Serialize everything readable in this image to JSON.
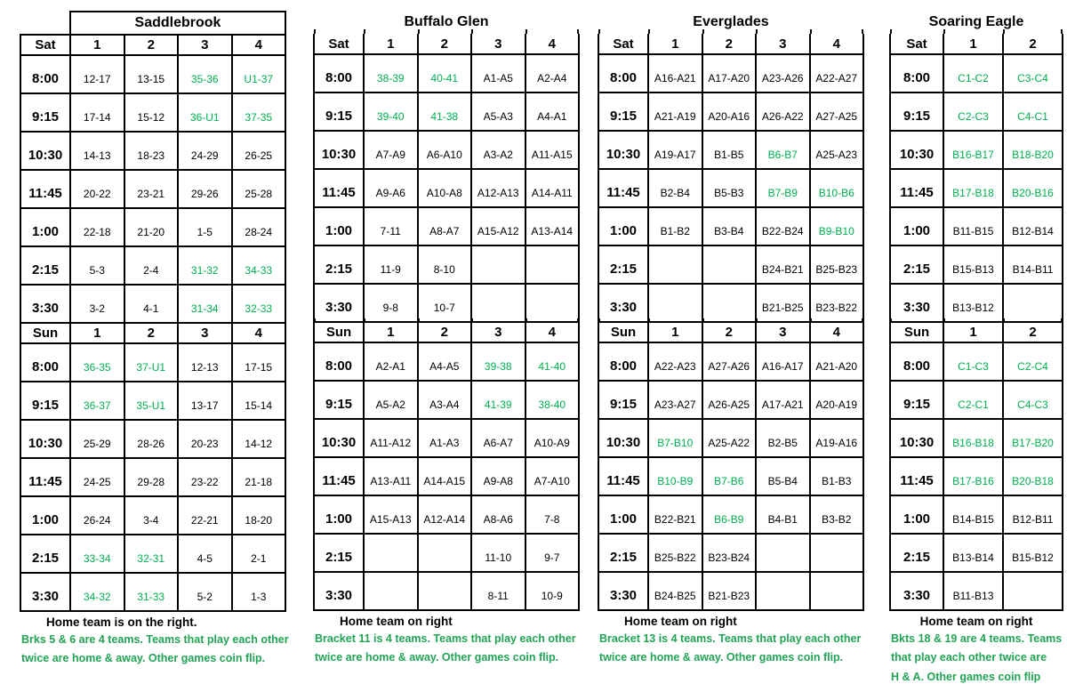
{
  "colors": {
    "cell_green": "#00B050",
    "note_green": "#21A454",
    "border": "#000000",
    "background": "#FFFFFF",
    "text": "#000000"
  },
  "tables": [
    {
      "id": "saddlebrook",
      "title": "Saddlebrook",
      "boxed_title": true,
      "days": [
        "Sat",
        "Sun"
      ],
      "columns": [
        "1",
        "2",
        "3",
        "4"
      ],
      "times": [
        "8:00",
        "9:15",
        "10:30",
        "11:45",
        "1:00",
        "2:15",
        "3:30"
      ],
      "sat": [
        [
          "12-17",
          "13-15",
          {
            "v": "35-36",
            "g": true
          },
          {
            "v": "U1-37",
            "g": true
          }
        ],
        [
          "17-14",
          "15-12",
          {
            "v": "36-U1",
            "g": true
          },
          {
            "v": "37-35",
            "g": true
          }
        ],
        [
          "14-13",
          "18-23",
          "24-29",
          "26-25"
        ],
        [
          "20-22",
          "23-21",
          "29-26",
          "25-28"
        ],
        [
          "22-18",
          "21-20",
          "1-5",
          "28-24"
        ],
        [
          "5-3",
          "2-4",
          {
            "v": "31-32",
            "g": true
          },
          {
            "v": "34-33",
            "g": true
          }
        ],
        [
          "3-2",
          "4-1",
          {
            "v": "31-34",
            "g": true
          },
          {
            "v": "32-33",
            "g": true
          }
        ]
      ],
      "sun": [
        [
          {
            "v": "36-35",
            "g": true
          },
          {
            "v": "37-U1",
            "g": true
          },
          "12-13",
          "17-15"
        ],
        [
          {
            "v": "36-37",
            "g": true
          },
          {
            "v": "35-U1",
            "g": true
          },
          "13-17",
          "15-14"
        ],
        [
          "25-29",
          "28-26",
          "20-23",
          "14-12"
        ],
        [
          "24-25",
          "29-28",
          "23-22",
          "21-18"
        ],
        [
          "26-24",
          "3-4",
          "22-21",
          "18-20"
        ],
        [
          {
            "v": "33-34",
            "g": true
          },
          {
            "v": "32-31",
            "g": true
          },
          "4-5",
          "2-1"
        ],
        [
          {
            "v": "34-32",
            "g": true
          },
          {
            "v": "31-33",
            "g": true
          },
          "5-2",
          "1-3"
        ]
      ],
      "note_black": "Home team is on the right.",
      "note_green_lines": [
        "Brks 5 & 6 are 4 teams. Teams that play each other",
        "twice are home & away. Other games coin flip."
      ]
    },
    {
      "id": "buffalo-glen",
      "title": "Buffalo Glen",
      "boxed_title": false,
      "days": [
        "Sat",
        "Sun"
      ],
      "columns": [
        "1",
        "2",
        "3",
        "4"
      ],
      "times": [
        "8:00",
        "9:15",
        "10:30",
        "11:45",
        "1:00",
        "2:15",
        "3:30"
      ],
      "sat": [
        [
          {
            "v": "38-39",
            "g": true
          },
          {
            "v": "40-41",
            "g": true
          },
          "A1-A5",
          "A2-A4"
        ],
        [
          {
            "v": "39-40",
            "g": true
          },
          {
            "v": "41-38",
            "g": true
          },
          "A5-A3",
          "A4-A1"
        ],
        [
          "A7-A9",
          "A6-A10",
          "A3-A2",
          "A11-A15"
        ],
        [
          "A9-A6",
          "A10-A8",
          "A12-A13",
          "A14-A11"
        ],
        [
          "7-11",
          "A8-A7",
          "A15-A12",
          "A13-A14"
        ],
        [
          "11-9",
          "8-10",
          "",
          ""
        ],
        [
          "9-8",
          "10-7",
          "",
          ""
        ]
      ],
      "sun": [
        [
          "A2-A1",
          "A4-A5",
          {
            "v": "39-38",
            "g": true
          },
          {
            "v": "41-40",
            "g": true
          }
        ],
        [
          "A5-A2",
          "A3-A4",
          {
            "v": "41-39",
            "g": true
          },
          {
            "v": "38-40",
            "g": true
          }
        ],
        [
          "A11-A12",
          "A1-A3",
          "A6-A7",
          "A10-A9"
        ],
        [
          "A13-A11",
          "A14-A15",
          "A9-A8",
          "A7-A10"
        ],
        [
          "A15-A13",
          "A12-A14",
          "A8-A6",
          "7-8"
        ],
        [
          "",
          "",
          "11-10",
          "9-7"
        ],
        [
          "",
          "",
          "8-11",
          "10-9"
        ]
      ],
      "note_black": "Home team on right",
      "note_green_lines": [
        "Bracket 11 is 4 teams. Teams that play each other",
        "twice are home & away. Other games coin flip."
      ]
    },
    {
      "id": "everglades",
      "title": "Everglades",
      "boxed_title": false,
      "days": [
        "Sat",
        "Sun"
      ],
      "columns": [
        "1",
        "2",
        "3",
        "4"
      ],
      "times": [
        "8:00",
        "9:15",
        "10:30",
        "11:45",
        "1:00",
        "2:15",
        "3:30"
      ],
      "sat": [
        [
          "A16-A21",
          "A17-A20",
          "A23-A26",
          "A22-A27"
        ],
        [
          "A21-A19",
          "A20-A16",
          "A26-A22",
          "A27-A25"
        ],
        [
          "A19-A17",
          "B1-B5",
          {
            "v": "B6-B7",
            "g": true
          },
          "A25-A23"
        ],
        [
          "B2-B4",
          "B5-B3",
          {
            "v": "B7-B9",
            "g": true
          },
          {
            "v": "B10-B6",
            "g": true
          }
        ],
        [
          "B1-B2",
          "B3-B4",
          "B22-B24",
          {
            "v": "B9-B10",
            "g": true
          }
        ],
        [
          "",
          "",
          "B24-B21",
          "B25-B23"
        ],
        [
          "",
          "",
          "B21-B25",
          "B23-B22"
        ]
      ],
      "sun": [
        [
          "A22-A23",
          "A27-A26",
          "A16-A17",
          "A21-A20"
        ],
        [
          "A23-A27",
          "A26-A25",
          "A17-A21",
          "A20-A19"
        ],
        [
          {
            "v": "B7-B10",
            "g": true
          },
          "A25-A22",
          "B2-B5",
          "A19-A16"
        ],
        [
          {
            "v": "B10-B9",
            "g": true
          },
          {
            "v": "B7-B6",
            "g": true
          },
          "B5-B4",
          "B1-B3"
        ],
        [
          "B22-B21",
          {
            "v": "B6-B9",
            "g": true
          },
          "B4-B1",
          "B3-B2"
        ],
        [
          "B25-B22",
          "B23-B24",
          "",
          ""
        ],
        [
          "B24-B25",
          "B21-B23",
          "",
          ""
        ]
      ],
      "note_black": "Home team on right",
      "note_green_lines": [
        "Bracket 13 is 4 teams. Teams that play each other",
        "twice are home & away. Other games coin flip."
      ]
    },
    {
      "id": "soaring-eagle",
      "title": "Soaring Eagle",
      "boxed_title": false,
      "days": [
        "Sat",
        "Sun"
      ],
      "columns": [
        "1",
        "2"
      ],
      "times": [
        "8:00",
        "9:15",
        "10:30",
        "11:45",
        "1:00",
        "2:15",
        "3:30"
      ],
      "sat": [
        [
          {
            "v": "C1-C2",
            "g": true
          },
          {
            "v": "C3-C4",
            "g": true
          }
        ],
        [
          {
            "v": "C2-C3",
            "g": true
          },
          {
            "v": "C4-C1",
            "g": true
          }
        ],
        [
          {
            "v": "B16-B17",
            "g": true
          },
          {
            "v": "B18-B20",
            "g": true
          }
        ],
        [
          {
            "v": "B17-B18",
            "g": true
          },
          {
            "v": "B20-B16",
            "g": true
          }
        ],
        [
          "B11-B15",
          "B12-B14"
        ],
        [
          "B15-B13",
          "B14-B11"
        ],
        [
          "B13-B12",
          ""
        ]
      ],
      "sun": [
        [
          {
            "v": "C1-C3",
            "g": true
          },
          {
            "v": "C2-C4",
            "g": true
          }
        ],
        [
          {
            "v": "C2-C1",
            "g": true
          },
          {
            "v": "C4-C3",
            "g": true
          }
        ],
        [
          {
            "v": "B16-B18",
            "g": true
          },
          {
            "v": "B17-B20",
            "g": true
          }
        ],
        [
          {
            "v": "B17-B16",
            "g": true
          },
          {
            "v": "B20-B18",
            "g": true
          }
        ],
        [
          "B14-B15",
          "B12-B11"
        ],
        [
          "B13-B14",
          "B15-B12"
        ],
        [
          "B11-B13",
          ""
        ]
      ],
      "note_black": "Home team on right",
      "note_green_lines": [
        "Bkts 18 & 19 are 4 teams. Teams",
        "that play each other twice are",
        "H & A. Other games coin flip"
      ]
    }
  ]
}
